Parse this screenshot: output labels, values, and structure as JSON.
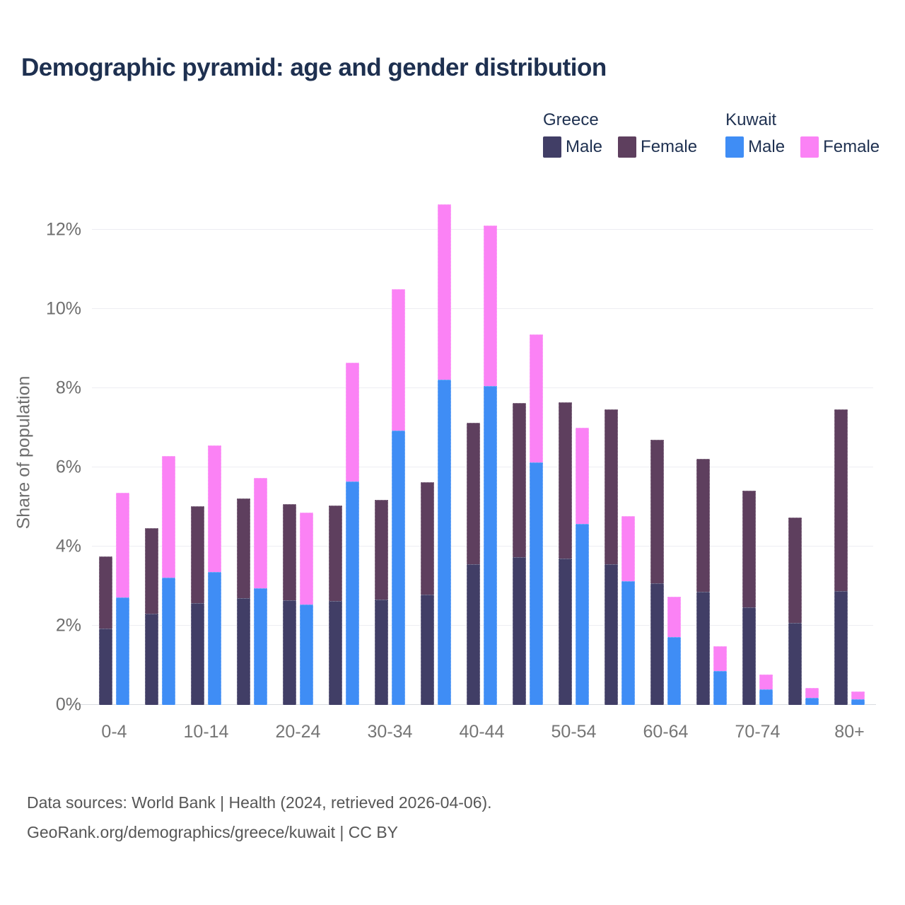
{
  "title": "Demographic pyramid: age and gender distribution",
  "colors": {
    "greece_male": "#413e66",
    "greece_female": "#5e3f5e",
    "kuwait_male": "#3f8df5",
    "kuwait_female": "#fb82f5",
    "title_text": "#1e3050",
    "axis_text": "#6e6e6e",
    "grid_line": "#ededf2",
    "footer_text": "#565656"
  },
  "legend": {
    "groups": [
      {
        "name": "Greece",
        "items": [
          {
            "label": "Male",
            "series_key": "greece_male"
          },
          {
            "label": "Female",
            "series_key": "greece_female"
          }
        ]
      },
      {
        "name": "Kuwait",
        "items": [
          {
            "label": "Male",
            "series_key": "kuwait_male"
          },
          {
            "label": "Female",
            "series_key": "kuwait_female"
          }
        ]
      }
    ]
  },
  "y_axis": {
    "label": "Share of population",
    "ticks": [
      "0%",
      "2%",
      "4%",
      "6%",
      "8%",
      "10%",
      "12%"
    ],
    "tick_values": [
      0,
      2,
      4,
      6,
      8,
      10,
      12
    ]
  },
  "x_axis": {
    "visible_tick_labels": [
      "0-4",
      "10-14",
      "20-24",
      "30-34",
      "40-44",
      "50-54",
      "60-64",
      "70-74",
      "80+"
    ]
  },
  "chart_data": {
    "type": "bar",
    "subtype": "grouped-stacked-pyramid",
    "title": "Demographic pyramid: age and gender distribution",
    "ylabel": "Share of population",
    "unit": "%",
    "ylim": [
      0,
      12.75
    ],
    "grid": true,
    "legend_position": "top-right",
    "categories": [
      "0-4",
      "5-9",
      "10-14",
      "15-19",
      "20-24",
      "25-29",
      "30-34",
      "35-39",
      "40-44",
      "45-49",
      "50-54",
      "55-59",
      "60-64",
      "65-69",
      "70-74",
      "75-79",
      "80+"
    ],
    "stacks": [
      [
        "greece_male",
        "greece_female"
      ],
      [
        "kuwait_male",
        "kuwait_female"
      ]
    ],
    "series": [
      {
        "name": "Greece Male",
        "key": "greece_male",
        "values": [
          1.93,
          2.3,
          2.57,
          2.7,
          2.65,
          2.62,
          2.66,
          2.79,
          3.55,
          3.74,
          3.7,
          3.56,
          3.08,
          2.86,
          2.47,
          2.07,
          2.87
        ]
      },
      {
        "name": "Greece Female",
        "key": "greece_female",
        "values": [
          1.82,
          2.16,
          2.45,
          2.52,
          2.42,
          2.41,
          2.52,
          2.84,
          3.58,
          3.88,
          3.95,
          3.9,
          3.62,
          3.36,
          2.95,
          2.67,
          4.59
        ]
      },
      {
        "name": "Kuwait Male",
        "key": "kuwait_male",
        "values": [
          2.71,
          3.21,
          3.36,
          2.95,
          2.54,
          5.65,
          6.92,
          8.22,
          8.06,
          6.12,
          4.57,
          3.13,
          1.72,
          0.86,
          0.39,
          0.17,
          0.15
        ]
      },
      {
        "name": "Kuwait Female",
        "key": "kuwait_female",
        "values": [
          2.64,
          3.07,
          3.2,
          2.78,
          2.32,
          2.99,
          3.58,
          4.42,
          4.04,
          3.24,
          2.43,
          1.63,
          1.02,
          0.63,
          0.38,
          0.25,
          0.19
        ]
      }
    ]
  },
  "footer": {
    "line1": "Data sources: World Bank | Health (2024, retrieved 2026-04-06).",
    "line2": "GeoRank.org/demographics/greece/kuwait | CC BY"
  }
}
